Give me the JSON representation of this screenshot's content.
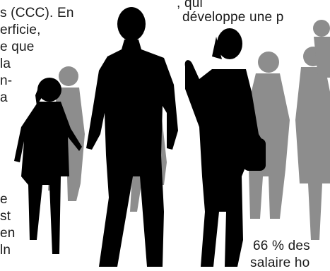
{
  "text": {
    "left": [
      "s (CCC). En",
      "erficie,",
      "e que",
      "la",
      "n-",
      "a",
      "e",
      "st",
      "en",
      "ln"
    ],
    "top_right": [
      ", qui",
      "développe une p"
    ],
    "bottom_right": [
      "66 % des",
      "salaire ho"
    ]
  }
}
